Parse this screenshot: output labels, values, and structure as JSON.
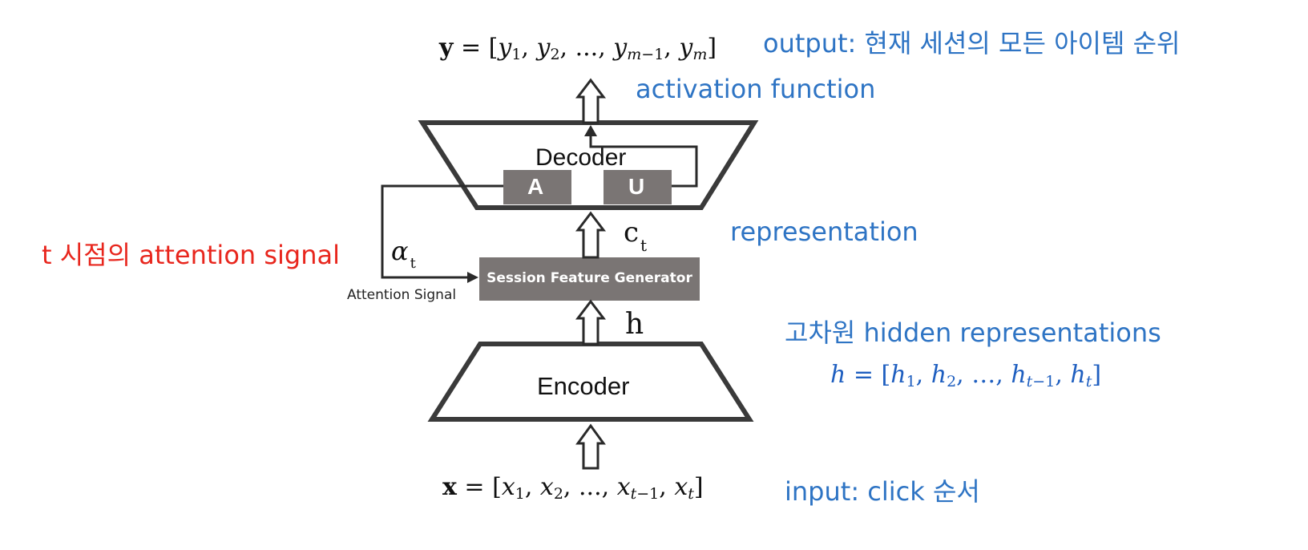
{
  "diagram": {
    "decoder_label": "Decoder",
    "encoder_label": "Encoder",
    "attention_block_label": "A",
    "update_block_label": "U",
    "session_feature_generator_label": "Session Feature Generator",
    "attention_signal_label": "Attention Signal",
    "c_t_symbol": "c",
    "c_t_subscript": "t",
    "h_symbol": "h",
    "alpha_symbol": "α",
    "alpha_subscript": "t",
    "output_equation": "y = [y1, y2, ..., ym−1, ym]",
    "input_equation": "x = [x1, x2, ..., xt−1, xt]",
    "hidden_equation": "h = [h1, h2, ..., ht−1, ht]"
  },
  "annotations": {
    "output": "output: 현재 세션의 모든 아이템 순위",
    "activation": "activation function",
    "representation": "representation",
    "attention_signal": "t 시점의 attention signal",
    "hidden": "고차원 hidden representations",
    "input": "input: click 순서"
  },
  "colors": {
    "annotation_blue": "#2e74c4",
    "annotation_red": "#e8261d",
    "block_gray": "#7a7574",
    "outline": "#3a3a3a"
  }
}
